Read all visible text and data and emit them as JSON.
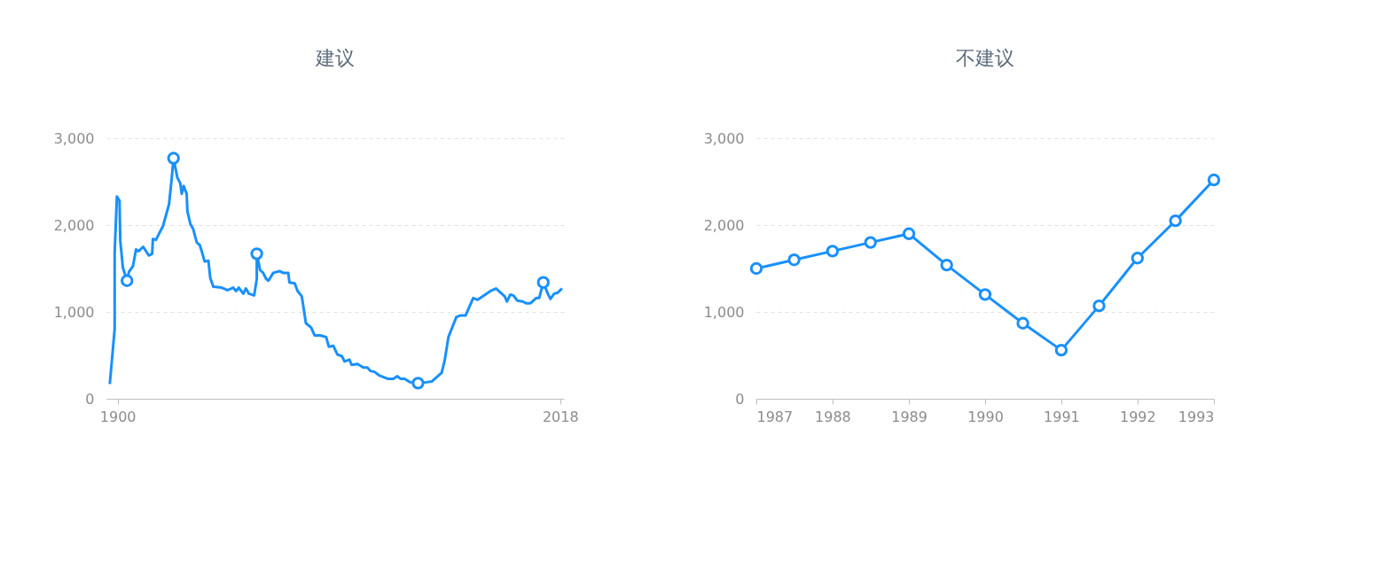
{
  "chart_data": [
    {
      "type": "line",
      "title": "建议",
      "grid": "y",
      "marker": "none",
      "line_style": "solid",
      "xlim": [
        1897,
        2019
      ],
      "xticks": [
        1900,
        2018
      ],
      "ylim": [
        0,
        3000
      ],
      "yticks": [
        0,
        {
          "value": 1000,
          "label": "1,000"
        },
        {
          "value": 2000,
          "label": "2,000"
        },
        {
          "value": 3000,
          "label": "3,000"
        }
      ],
      "series": [
        {
          "color": "#1890ff",
          "x": [
            1897.9,
            1899.2,
            1899.2,
            1899.8,
            1900.5,
            1900.7,
            1901.4,
            1902.5,
            1903,
            1904.1,
            1904.9,
            1905.6,
            1906.8,
            1908.3,
            1909.2,
            1909.4,
            1910.2,
            1912.1,
            1913.7,
            1914.4,
            1914.9,
            1915.9,
            1916.7,
            1917.1,
            1917.6,
            1918.4,
            1918.6,
            1919.4,
            1920.1,
            1921.1,
            1921.9,
            1922.4,
            1923.2,
            1924.2,
            1924.7,
            1925.5,
            1927.7,
            1929.3,
            1930.8,
            1931.6,
            1932.3,
            1933.5,
            1934.2,
            1935,
            1936.4,
            1937.1,
            1937.1,
            1938,
            1938.8,
            1939.6,
            1940.2,
            1941.5,
            1943.2,
            1944.1,
            1945.5,
            1945.8,
            1947.2,
            1948,
            1949.1,
            1950.2,
            1951.6,
            1952.5,
            1954,
            1955.6,
            1956.3,
            1957.5,
            1958.6,
            1959.8,
            1960.5,
            1961.8,
            1962.4,
            1964,
            1965.5,
            1966.6,
            1967.4,
            1968.5,
            1969.7,
            1972,
            1973.5,
            1974.6,
            1975.4,
            1976.5,
            1978,
            1980.1,
            1982.3,
            1983.8,
            1986.4,
            1987.2,
            1988.2,
            1990.3,
            1991.4,
            1992.8,
            1994.8,
            1996,
            1999.4,
            2000.9,
            2003.2,
            2003.8,
            2004.7,
            2005.5,
            2006.6,
            2008,
            2008.9,
            2010.1,
            2011.6,
            2012.4,
            2013.5,
            2014.7,
            2015.4,
            2016.4,
            2017.3,
            2018.5
          ],
          "values": [
            170,
            800,
            1680,
            2330,
            2280,
            1820,
            1510,
            1360,
            1460,
            1530,
            1720,
            1700,
            1750,
            1650,
            1670,
            1840,
            1830,
            1990,
            2240,
            2530,
            2770,
            2550,
            2480,
            2360,
            2450,
            2360,
            2160,
            2010,
            1960,
            1800,
            1770,
            1700,
            1580,
            1590,
            1390,
            1290,
            1280,
            1250,
            1280,
            1240,
            1280,
            1210,
            1270,
            1210,
            1190,
            1380,
            1670,
            1480,
            1450,
            1380,
            1360,
            1450,
            1470,
            1450,
            1450,
            1340,
            1330,
            1240,
            1180,
            870,
            820,
            730,
            730,
            710,
            600,
            610,
            510,
            490,
            430,
            450,
            390,
            400,
            360,
            360,
            320,
            310,
            270,
            230,
            230,
            260,
            230,
            230,
            190,
            180,
            190,
            200,
            300,
            440,
            710,
            940,
            960,
            960,
            1160,
            1140,
            1240,
            1270,
            1180,
            1120,
            1200,
            1190,
            1130,
            1120,
            1100,
            1100,
            1160,
            1160,
            1340,
            1210,
            1150,
            1210,
            1220,
            1270
          ]
        },
        {
          "type": "scatter",
          "marker": "circle",
          "color": "#1890ff",
          "x": [
            1902.5,
            1914.9,
            1937.1,
            1980.1,
            2013.5
          ],
          "values": [
            1360,
            2770,
            1670,
            180,
            1340
          ]
        }
      ]
    },
    {
      "type": "line",
      "title": "不建议",
      "grid": "y",
      "marker": "circle",
      "line_style": "solid",
      "xlim": [
        "1987",
        "1993"
      ],
      "xticks": [
        "1987",
        "1988",
        "1989",
        "1990",
        "1991",
        "1992",
        "1993"
      ],
      "ylim": [
        0,
        3000
      ],
      "yticks": [
        0,
        {
          "value": 1000,
          "label": "1,000"
        },
        {
          "value": 2000,
          "label": "2,000"
        },
        {
          "value": 3000,
          "label": "3,000"
        }
      ],
      "series": [
        {
          "color": "#1890ff",
          "x": [
            "1987-01",
            "1987-07",
            "1988-01",
            "1988-07",
            "1989-01",
            "1989-07",
            "1990-01",
            "1990-07",
            "1991-01",
            "1991-07",
            "1992-01",
            "1992-07",
            "1993-01"
          ],
          "values": [
            1500,
            1600,
            1700,
            1800,
            1900,
            1540,
            1200,
            870,
            560,
            1070,
            1620,
            2050,
            2520
          ]
        }
      ]
    }
  ]
}
